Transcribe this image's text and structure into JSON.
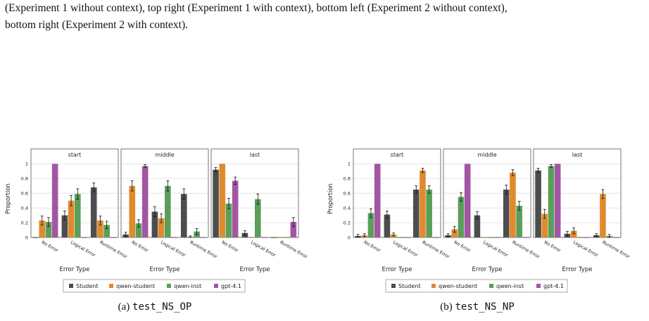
{
  "caption_lines": [
    "(Experiment 1 without context), top right (Experiment 1 with context), bottom left (Experiment 2 without context),",
    "bottom right (Experiment 2 with context)."
  ],
  "legend": [
    "Student",
    "qwen-student",
    "qwen-inst",
    "gpt-4.1"
  ],
  "colors": {
    "Student": "#4d4d4d",
    "qwen-student": "#e08a2e",
    "qwen-inst": "#5a9e5a",
    "gpt-4.1": "#a256a2",
    "grid": "#d9d9d9",
    "frame": "#555555"
  },
  "chart_data": [
    {
      "type": "bar",
      "caption_prefix": "(a) ",
      "caption_code": "test_NS_OP",
      "panels": [
        "start",
        "middle",
        "last"
      ],
      "categories": [
        "No Error",
        "Logical Error",
        "Runtime Error"
      ],
      "xlabel": "Error Type",
      "ylabel": "Proportion",
      "ylim": [
        0,
        1.05
      ],
      "yticks": [
        "0",
        "0.2",
        "0.4",
        "0.6",
        "0.8",
        "1"
      ],
      "series": [
        {
          "name": "Student",
          "values": [
            [
              0.0,
              0.3,
              0.68
            ],
            [
              0.04,
              0.35,
              0.59
            ],
            [
              0.92,
              0.06,
              0.0
            ]
          ],
          "errors": [
            [
              0.0,
              0.06,
              0.06
            ],
            [
              0.03,
              0.07,
              0.07
            ],
            [
              0.03,
              0.03,
              0.0
            ]
          ]
        },
        {
          "name": "qwen-student",
          "values": [
            [
              0.23,
              0.5,
              0.23
            ],
            [
              0.7,
              0.26,
              0.01
            ],
            [
              1.0,
              0.0,
              0.0
            ]
          ],
          "errors": [
            [
              0.06,
              0.07,
              0.06
            ],
            [
              0.07,
              0.06,
              0.01
            ],
            [
              0.0,
              0.0,
              0.0
            ]
          ]
        },
        {
          "name": "qwen-inst",
          "values": [
            [
              0.21,
              0.59,
              0.17
            ],
            [
              0.19,
              0.7,
              0.08
            ],
            [
              0.46,
              0.52,
              0.0
            ]
          ],
          "errors": [
            [
              0.06,
              0.07,
              0.05
            ],
            [
              0.05,
              0.07,
              0.04
            ],
            [
              0.07,
              0.07,
              0.0
            ]
          ]
        },
        {
          "name": "gpt-4.1",
          "values": [
            [
              1.0,
              0.0,
              0.0
            ],
            [
              0.97,
              0.0,
              0.0
            ],
            [
              0.77,
              0.0,
              0.21
            ]
          ],
          "errors": [
            [
              0.0,
              0.0,
              0.0
            ],
            [
              0.02,
              0.0,
              0.0
            ],
            [
              0.05,
              0.0,
              0.06
            ]
          ]
        }
      ]
    },
    {
      "type": "bar",
      "caption_prefix": "(b) ",
      "caption_code": "test_NS_NP",
      "panels": [
        "start",
        "middle",
        "last"
      ],
      "categories": [
        "No Error",
        "Logical Error",
        "Runtime Error"
      ],
      "xlabel": "Error Type",
      "ylabel": "Proportion",
      "ylim": [
        0,
        1.05
      ],
      "yticks": [
        "0",
        "0.2",
        "0.4",
        "0.6",
        "0.8",
        "1"
      ],
      "series": [
        {
          "name": "Student",
          "values": [
            [
              0.02,
              0.31,
              0.65
            ],
            [
              0.03,
              0.3,
              0.65
            ],
            [
              0.91,
              0.05,
              0.03
            ]
          ],
          "errors": [
            [
              0.02,
              0.05,
              0.05
            ],
            [
              0.02,
              0.05,
              0.06
            ],
            [
              0.03,
              0.03,
              0.02
            ]
          ]
        },
        {
          "name": "qwen-student",
          "values": [
            [
              0.03,
              0.04,
              0.91
            ],
            [
              0.11,
              0.0,
              0.88
            ],
            [
              0.32,
              0.09,
              0.59
            ]
          ],
          "errors": [
            [
              0.02,
              0.02,
              0.03
            ],
            [
              0.04,
              0.0,
              0.04
            ],
            [
              0.06,
              0.04,
              0.06
            ]
          ]
        },
        {
          "name": "qwen-inst",
          "values": [
            [
              0.33,
              0.0,
              0.65
            ],
            [
              0.55,
              0.0,
              0.43
            ],
            [
              0.97,
              0.0,
              0.02
            ]
          ],
          "errors": [
            [
              0.06,
              0.0,
              0.05
            ],
            [
              0.06,
              0.0,
              0.06
            ],
            [
              0.02,
              0.0,
              0.02
            ]
          ]
        },
        {
          "name": "gpt-4.1",
          "values": [
            [
              1.0,
              0.0,
              0.0
            ],
            [
              1.0,
              0.0,
              0.0
            ],
            [
              1.0,
              0.0,
              0.0
            ]
          ],
          "errors": [
            [
              0.0,
              0.0,
              0.0
            ],
            [
              0.0,
              0.0,
              0.0
            ],
            [
              0.0,
              0.0,
              0.0
            ]
          ]
        }
      ]
    }
  ]
}
